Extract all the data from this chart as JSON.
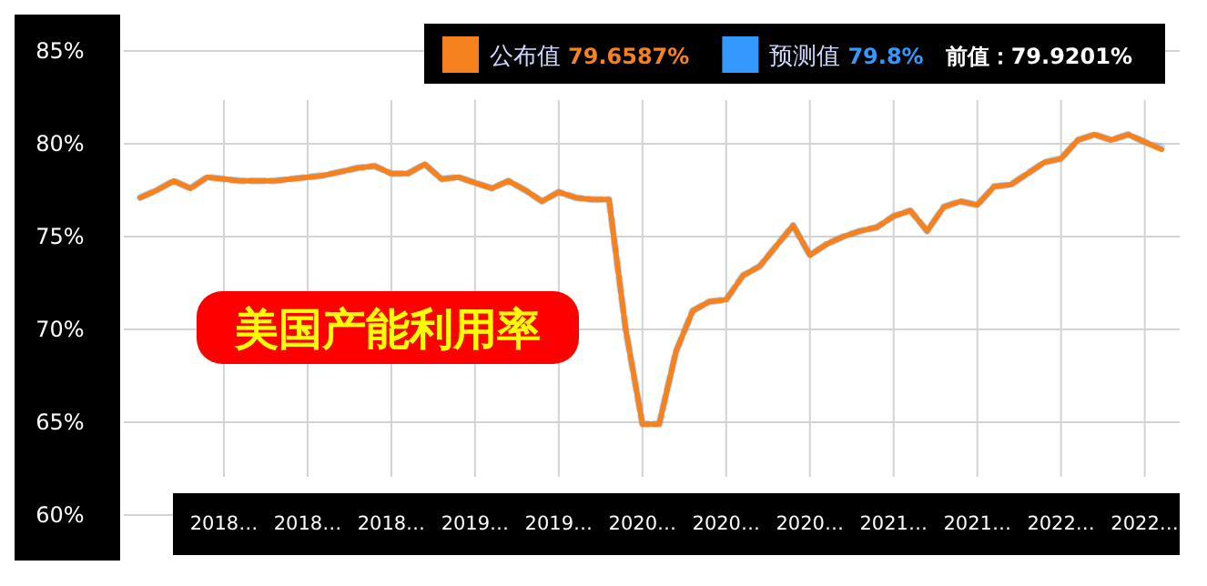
{
  "chart_data": {
    "type": "line",
    "title": "美国产能利用率",
    "categories": [
      null,
      null,
      null,
      null,
      null,
      "2018…",
      null,
      null,
      null,
      null,
      "2018…",
      null,
      null,
      null,
      null,
      "2018…",
      null,
      null,
      null,
      null,
      "2019…",
      null,
      null,
      null,
      null,
      "2019…",
      null,
      null,
      null,
      null,
      "2020…",
      null,
      null,
      null,
      null,
      "2020…",
      null,
      null,
      null,
      null,
      "2020…",
      null,
      null,
      null,
      null,
      "2021…",
      null,
      null,
      null,
      null,
      "2021…",
      null,
      null,
      null,
      null,
      "2022…",
      null,
      null,
      null,
      null,
      "2022…",
      null
    ],
    "series": [
      {
        "name": "预测值",
        "color": "#3399ff",
        "line_style": "dashed",
        "values": [
          77.1,
          77.5,
          78.0,
          77.6,
          78.2,
          78.1,
          78.0,
          78.0,
          78.0,
          78.1,
          78.2,
          78.3,
          78.5,
          78.7,
          78.8,
          78.4,
          78.4,
          78.9,
          78.1,
          78.2,
          77.9,
          77.6,
          78.0,
          77.5,
          76.9,
          77.4,
          77.1,
          77.0,
          77.0,
          70.0,
          64.9,
          64.9,
          68.8,
          71.0,
          71.5,
          71.6,
          72.9,
          73.4,
          74.5,
          75.6,
          74.0,
          74.6,
          75.0,
          75.3,
          75.5,
          76.1,
          76.4,
          75.3,
          76.6,
          76.9,
          76.7,
          77.7,
          77.8,
          78.4,
          79.0,
          79.2,
          80.2,
          80.5,
          80.2,
          80.5,
          80.1,
          79.8
        ]
      },
      {
        "name": "公布值",
        "color": "#f5821f",
        "line_style": "solid",
        "values": [
          77.1,
          77.5,
          78.0,
          77.6,
          78.2,
          78.1,
          78.0,
          78.0,
          78.0,
          78.1,
          78.2,
          78.3,
          78.5,
          78.7,
          78.8,
          78.4,
          78.4,
          78.9,
          78.1,
          78.2,
          77.9,
          77.6,
          78.0,
          77.5,
          76.9,
          77.4,
          77.1,
          77.0,
          77.0,
          70.0,
          64.9,
          64.9,
          68.8,
          71.0,
          71.5,
          71.6,
          72.9,
          73.4,
          74.5,
          75.6,
          74.0,
          74.6,
          75.0,
          75.3,
          75.5,
          76.1,
          76.4,
          75.3,
          76.6,
          76.9,
          76.7,
          77.7,
          77.8,
          78.4,
          79.0,
          79.2,
          80.2,
          80.5,
          80.2,
          80.5,
          80.1,
          79.7
        ]
      }
    ],
    "annotations": [
      "79.8%",
      "79.6587%",
      "前值：79.9201%"
    ],
    "ylim": [
      60,
      85
    ],
    "yticks": [
      {
        "value": 60,
        "label": "60%"
      },
      {
        "value": 65,
        "label": "65%"
      },
      {
        "value": 70,
        "label": "70%"
      },
      {
        "value": 75,
        "label": "75%"
      },
      {
        "value": 80,
        "label": "80%"
      },
      {
        "value": 85,
        "label": "85%"
      }
    ],
    "grid": true,
    "legend": "top",
    "marker": "none"
  }
}
